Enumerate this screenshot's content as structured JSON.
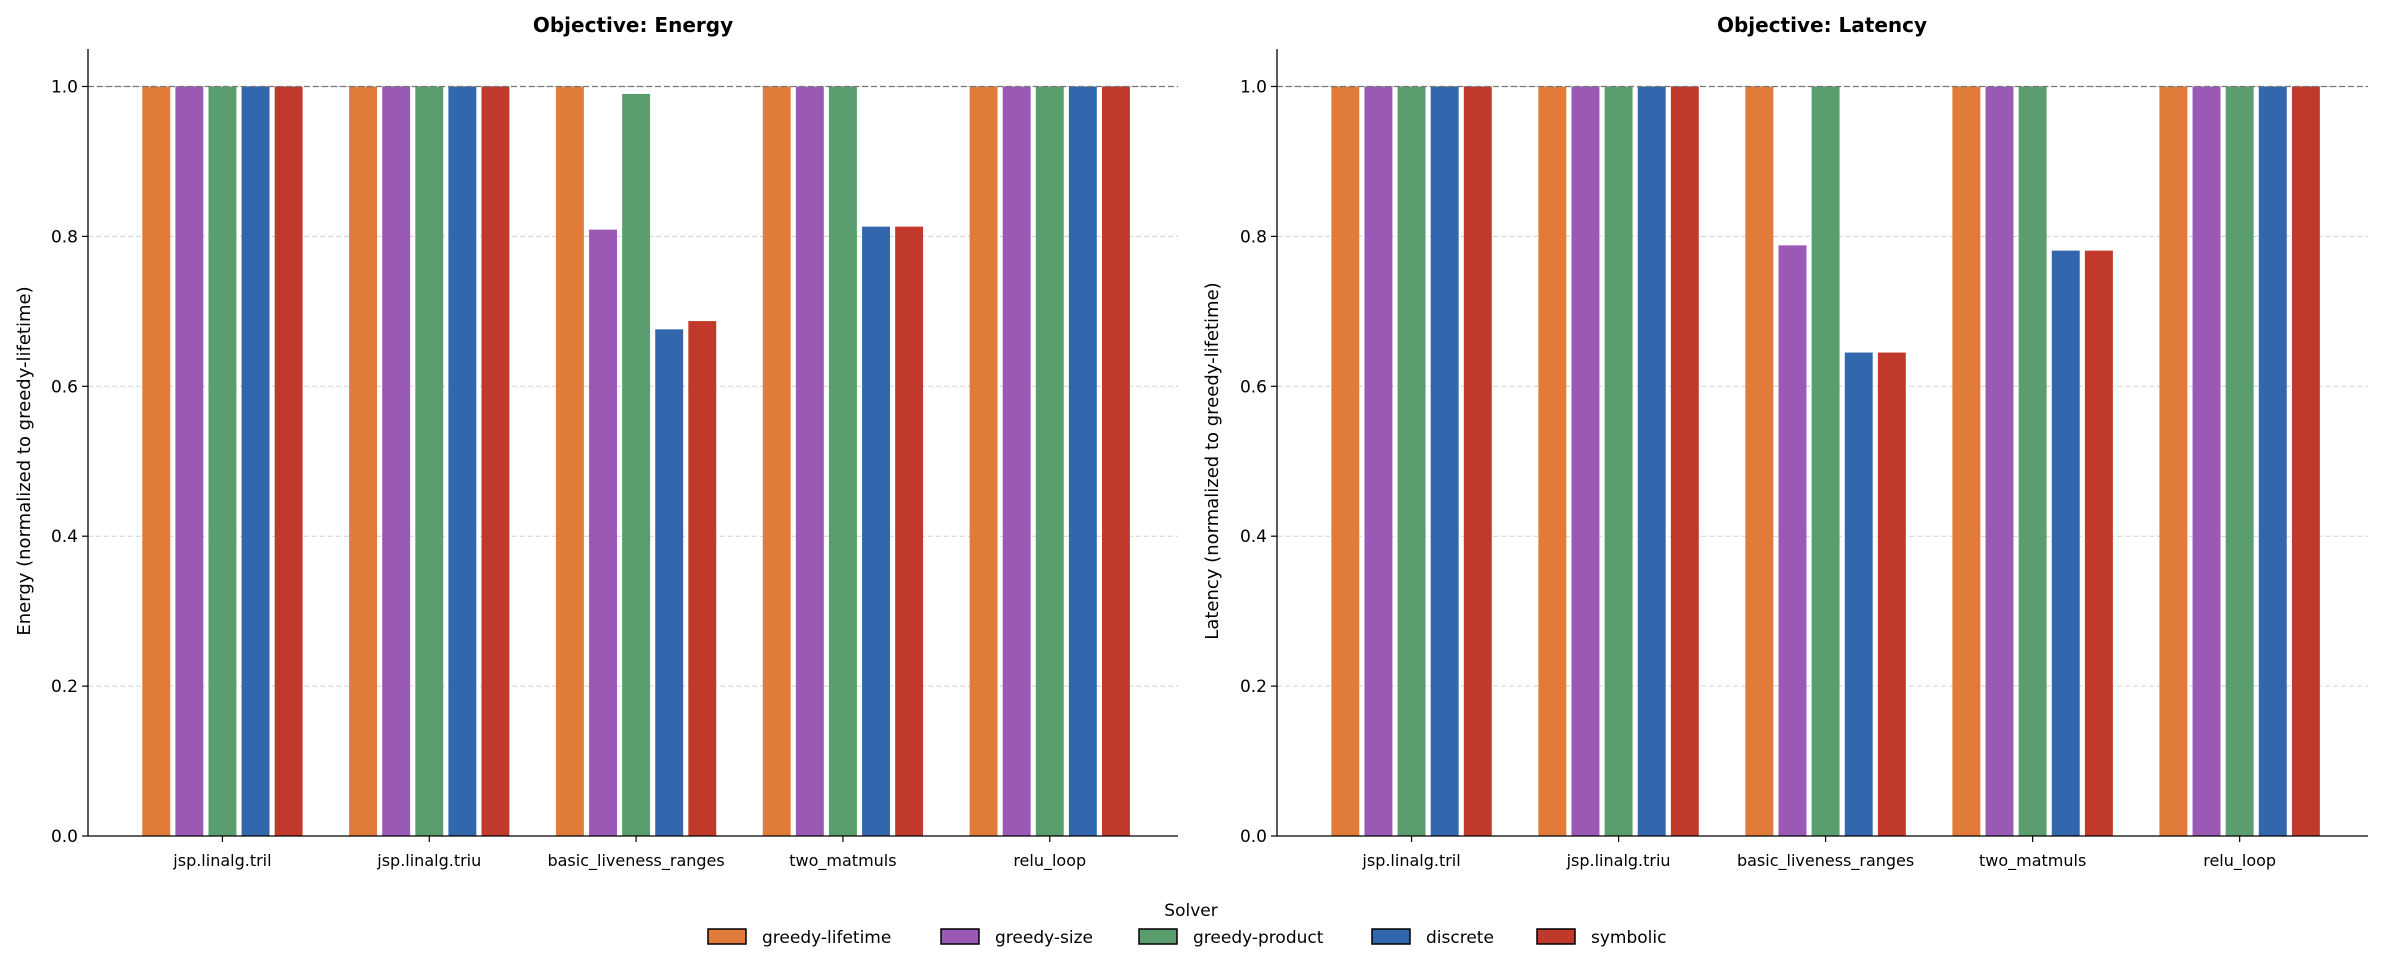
{
  "legend": {
    "title": "Solver",
    "entries": [
      "greedy-lifetime",
      "greedy-size",
      "greedy-product",
      "discrete",
      "symbolic"
    ],
    "colors": [
      "#e07b39",
      "#9b59b6",
      "#5a9e6f",
      "#3367ad",
      "#c0392b"
    ]
  },
  "chart_data": [
    {
      "type": "bar",
      "title": "Objective: Energy",
      "xlabel": "",
      "ylabel": "Energy (normalized to greedy-lifetime)",
      "categories": [
        "jsp.linalg.tril",
        "jsp.linalg.triu",
        "basic_liveness_ranges",
        "two_matmuls",
        "relu_loop"
      ],
      "ylim": [
        0,
        1.05
      ],
      "yticks": [
        "0.0",
        "0.2",
        "0.4",
        "0.6",
        "0.8",
        "1.0"
      ],
      "grid": "y, dashed",
      "reference_line": 1.0,
      "legend_placement": "bottom-center",
      "series": [
        {
          "name": "greedy-lifetime",
          "values": [
            1.0,
            1.0,
            1.0,
            1.0,
            1.0
          ]
        },
        {
          "name": "greedy-size",
          "values": [
            1.0,
            1.0,
            0.809,
            1.0,
            1.0
          ]
        },
        {
          "name": "greedy-product",
          "values": [
            1.0,
            1.0,
            0.99,
            1.0,
            1.0
          ]
        },
        {
          "name": "discrete",
          "values": [
            1.0,
            1.0,
            0.676,
            0.813,
            1.0
          ]
        },
        {
          "name": "symbolic",
          "values": [
            1.0,
            1.0,
            0.687,
            0.813,
            1.0
          ]
        }
      ]
    },
    {
      "type": "bar",
      "title": "Objective: Latency",
      "xlabel": "",
      "ylabel": "Latency (normalized to greedy-lifetime)",
      "categories": [
        "jsp.linalg.tril",
        "jsp.linalg.triu",
        "basic_liveness_ranges",
        "two_matmuls",
        "relu_loop"
      ],
      "ylim": [
        0,
        1.05
      ],
      "yticks": [
        "0.0",
        "0.2",
        "0.4",
        "0.6",
        "0.8",
        "1.0"
      ],
      "grid": "y, dashed",
      "reference_line": 1.0,
      "legend_placement": "bottom-center",
      "series": [
        {
          "name": "greedy-lifetime",
          "values": [
            1.0,
            1.0,
            1.0,
            1.0,
            1.0
          ]
        },
        {
          "name": "greedy-size",
          "values": [
            1.0,
            1.0,
            0.788,
            1.0,
            1.0
          ]
        },
        {
          "name": "greedy-product",
          "values": [
            1.0,
            1.0,
            1.0,
            1.0,
            1.0
          ]
        },
        {
          "name": "discrete",
          "values": [
            1.0,
            1.0,
            0.645,
            0.781,
            1.0
          ]
        },
        {
          "name": "symbolic",
          "values": [
            1.0,
            1.0,
            0.645,
            0.781,
            1.0
          ]
        }
      ]
    }
  ]
}
